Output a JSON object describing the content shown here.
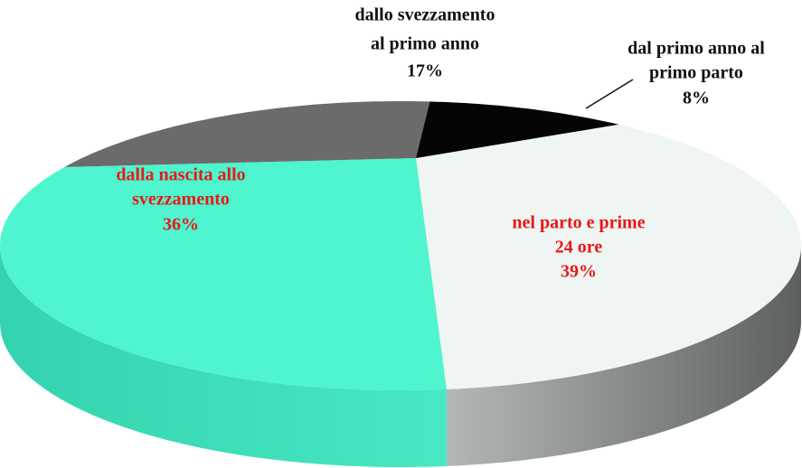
{
  "chart_data": {
    "type": "pie3d",
    "categories": [
      [
        "nel parto e prime",
        "24 ore"
      ],
      [
        "dalla nascita allo",
        "svezzamento"
      ],
      [
        "dallo svezzamento",
        "al primo anno"
      ],
      [
        "dal primo anno al",
        "primo parto"
      ]
    ],
    "values": [
      39,
      36,
      17,
      8
    ],
    "value_labels": [
      "39%",
      "36%",
      "17%",
      "8%"
    ],
    "colors": [
      "#eef5f2",
      "#4ef5cf",
      "#6b6b6b",
      "#050505"
    ],
    "label_colors": [
      "#e81818",
      "#e81818",
      "#111111",
      "#111111"
    ]
  }
}
